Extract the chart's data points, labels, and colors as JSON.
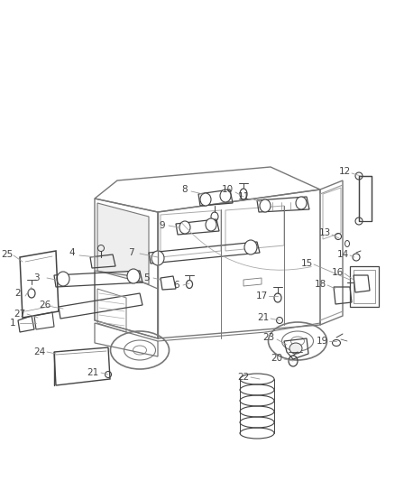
{
  "bg_color": "#ffffff",
  "fig_width": 4.38,
  "fig_height": 5.33,
  "dpi": 100,
  "lc": "#555555",
  "tc": "#444444",
  "van_color": "#777777",
  "part_color": "#444444"
}
